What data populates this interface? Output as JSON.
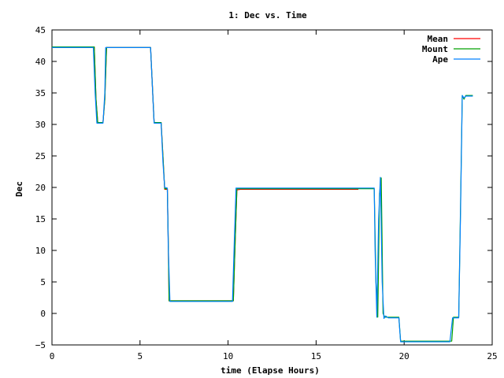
{
  "chart_data": {
    "type": "line",
    "title": "1: Dec vs. Time",
    "xlabel": "time (Elapse Hours)",
    "ylabel": "Dec",
    "xlim": [
      0,
      25
    ],
    "ylim": [
      -5,
      45
    ],
    "xticks": [
      0,
      5,
      10,
      15,
      20,
      25
    ],
    "yticks": [
      -5,
      0,
      5,
      10,
      15,
      20,
      25,
      30,
      35,
      40,
      45
    ],
    "legend_position": "top-right",
    "grid": false,
    "series": [
      {
        "name": "Mean",
        "color": "#ff0000",
        "points": [
          [
            0,
            42.3
          ],
          [
            2.4,
            42.3
          ],
          [
            2.5,
            34
          ],
          [
            2.6,
            30.3
          ],
          [
            2.9,
            30.3
          ],
          [
            3.0,
            34
          ],
          [
            3.1,
            42.2
          ],
          [
            5.6,
            42.2
          ],
          [
            5.8,
            30.3
          ],
          [
            6.2,
            30.3
          ],
          [
            6.3,
            25
          ],
          [
            6.4,
            19.7
          ],
          [
            6.55,
            19.7
          ],
          [
            6.6,
            12
          ],
          [
            6.65,
            2.0
          ],
          [
            10.3,
            2.0
          ],
          [
            10.4,
            11
          ],
          [
            10.5,
            19.6
          ],
          [
            10.7,
            19.7
          ],
          [
            17.4,
            19.7
          ]
        ]
      },
      {
        "name": "Mount",
        "color": "#00a000",
        "points": [
          [
            0,
            42.3
          ],
          [
            2.4,
            42.3
          ],
          [
            2.5,
            34
          ],
          [
            2.6,
            30.3
          ],
          [
            2.9,
            30.3
          ],
          [
            3.0,
            34
          ],
          [
            3.1,
            42.2
          ],
          [
            5.6,
            42.2
          ],
          [
            5.8,
            30.3
          ],
          [
            6.2,
            30.3
          ],
          [
            6.3,
            25
          ],
          [
            6.4,
            19.8
          ],
          [
            6.55,
            19.8
          ],
          [
            6.6,
            12
          ],
          [
            6.65,
            2.0
          ],
          [
            10.3,
            2.0
          ],
          [
            10.4,
            11
          ],
          [
            10.5,
            19.8
          ],
          [
            18.3,
            19.8
          ],
          [
            18.4,
            5
          ],
          [
            18.5,
            -0.6
          ],
          [
            18.6,
            19
          ],
          [
            18.7,
            21.5
          ],
          [
            18.8,
            0
          ],
          [
            18.9,
            -0.6
          ],
          [
            19.7,
            -0.6
          ],
          [
            19.8,
            -4.4
          ],
          [
            22.7,
            -4.4
          ],
          [
            22.8,
            -0.6
          ],
          [
            23.1,
            -0.6
          ],
          [
            23.2,
            17
          ],
          [
            23.3,
            34.6
          ],
          [
            23.4,
            34.0
          ],
          [
            23.5,
            34.6
          ],
          [
            23.9,
            34.6
          ]
        ]
      },
      {
        "name": "Ape",
        "color": "#0080ff",
        "points": [
          [
            0,
            42.2
          ],
          [
            2.35,
            42.2
          ],
          [
            2.45,
            35
          ],
          [
            2.55,
            30.2
          ],
          [
            2.9,
            30.2
          ],
          [
            3.0,
            35
          ],
          [
            3.05,
            42.2
          ],
          [
            5.6,
            42.2
          ],
          [
            5.7,
            36
          ],
          [
            5.8,
            30.2
          ],
          [
            6.2,
            30.2
          ],
          [
            6.3,
            24
          ],
          [
            6.4,
            20.0
          ],
          [
            6.55,
            19.9
          ],
          [
            6.6,
            11
          ],
          [
            6.7,
            1.9
          ],
          [
            10.25,
            1.9
          ],
          [
            10.35,
            11
          ],
          [
            10.45,
            19.9
          ],
          [
            18.3,
            19.9
          ],
          [
            18.35,
            10
          ],
          [
            18.45,
            -0.6
          ],
          [
            18.55,
            15
          ],
          [
            18.65,
            21.6
          ],
          [
            18.75,
            5
          ],
          [
            18.85,
            -0.8
          ],
          [
            18.95,
            -0.4
          ],
          [
            19.1,
            -0.7
          ],
          [
            19.7,
            -0.7
          ],
          [
            19.8,
            -4.5
          ],
          [
            22.6,
            -4.5
          ],
          [
            22.75,
            -0.7
          ],
          [
            23.1,
            -0.7
          ],
          [
            23.2,
            16
          ],
          [
            23.3,
            34.6
          ],
          [
            23.4,
            34.2
          ],
          [
            23.5,
            34.5
          ],
          [
            23.9,
            34.5
          ]
        ]
      }
    ]
  }
}
